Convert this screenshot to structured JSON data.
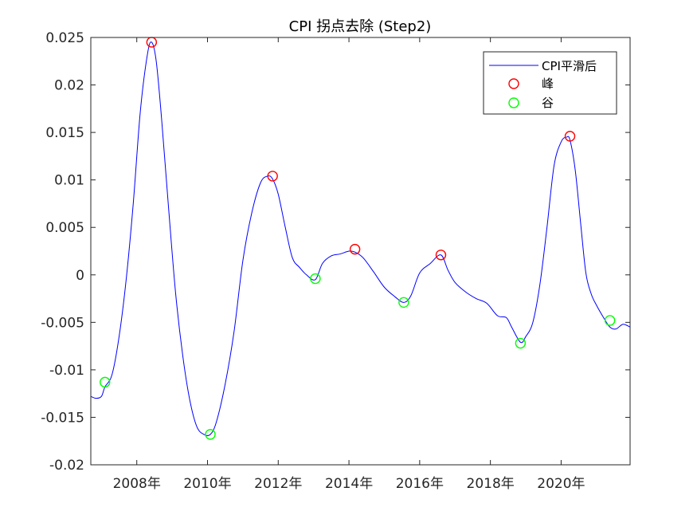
{
  "chart_data": {
    "type": "line",
    "title": "CPI 拐点去除 (Step2)",
    "xlabel": "",
    "ylabel": "",
    "xlim": [
      2006.7,
      2021.95
    ],
    "ylim": [
      -0.02,
      0.025
    ],
    "x_ticks": [
      2008,
      2010,
      2012,
      2014,
      2016,
      2018,
      2020
    ],
    "x_tick_labels": [
      "2008年",
      "2010年",
      "2012年",
      "2014年",
      "2016年",
      "2018年",
      "2020年"
    ],
    "y_ticks": [
      0.025,
      0.02,
      0.015,
      0.01,
      0.005,
      0,
      -0.005,
      -0.01,
      -0.015,
      -0.02
    ],
    "y_tick_labels": [
      "0.025",
      "0.02",
      "0.015",
      "0.01",
      "0.005",
      "0",
      "-0.005",
      "-0.01",
      "-0.015",
      "-0.02"
    ],
    "grid": false,
    "legend_position": "top-right",
    "series": [
      {
        "name": "CPI平滑后",
        "kind": "line",
        "color": "#0000ff",
        "x": [
          2006.7,
          2006.85,
          2007.0,
          2007.1,
          2007.3,
          2007.5,
          2007.7,
          2007.9,
          2008.1,
          2008.3,
          2008.42,
          2008.55,
          2008.7,
          2008.9,
          2009.1,
          2009.3,
          2009.5,
          2009.7,
          2009.9,
          2010.08,
          2010.25,
          2010.5,
          2010.75,
          2011.0,
          2011.25,
          2011.5,
          2011.7,
          2011.84,
          2012.0,
          2012.2,
          2012.4,
          2012.6,
          2012.8,
          2013.05,
          2013.25,
          2013.5,
          2013.75,
          2014.0,
          2014.17,
          2014.4,
          2014.7,
          2015.0,
          2015.3,
          2015.55,
          2015.75,
          2016.0,
          2016.3,
          2016.6,
          2016.8,
          2017.0,
          2017.3,
          2017.6,
          2017.9,
          2018.2,
          2018.45,
          2018.6,
          2018.85,
          2019.0,
          2019.2,
          2019.4,
          2019.6,
          2019.8,
          2020.0,
          2020.15,
          2020.25,
          2020.4,
          2020.55,
          2020.7,
          2020.85,
          2021.0,
          2021.2,
          2021.38,
          2021.55,
          2021.75,
          2021.95
        ],
        "y": [
          -0.0128,
          -0.013,
          -0.0128,
          -0.0118,
          -0.0105,
          -0.0065,
          -0.0005,
          0.0075,
          0.0172,
          0.0232,
          0.0245,
          0.0225,
          0.0165,
          0.007,
          -0.002,
          -0.0085,
          -0.0132,
          -0.016,
          -0.0168,
          -0.0168,
          -0.0155,
          -0.0115,
          -0.006,
          0.0015,
          0.0065,
          0.0097,
          0.0104,
          0.0101,
          0.0085,
          0.005,
          0.0018,
          0.0008,
          0.0,
          -0.0005,
          0.0012,
          0.002,
          0.0022,
          0.0025,
          0.0024,
          0.0018,
          0.0003,
          -0.0013,
          -0.0023,
          -0.0029,
          -0.0022,
          0.0002,
          0.0012,
          0.0021,
          0.0005,
          -0.0008,
          -0.0018,
          -0.0025,
          -0.003,
          -0.0043,
          -0.0045,
          -0.0055,
          -0.0071,
          -0.0065,
          -0.005,
          -0.001,
          0.005,
          0.0115,
          0.014,
          0.0145,
          0.0142,
          0.011,
          0.0055,
          0.0002,
          -0.002,
          -0.0032,
          -0.0045,
          -0.0055,
          -0.0057,
          -0.0052,
          -0.0055
        ]
      },
      {
        "name": "峰",
        "kind": "marker",
        "color": "#ff0000",
        "x": [
          2008.42,
          2011.84,
          2014.17,
          2016.6,
          2020.25
        ],
        "y": [
          0.0245,
          0.0104,
          0.0027,
          0.0021,
          0.0146
        ]
      },
      {
        "name": "谷",
        "kind": "marker",
        "color": "#00ff00",
        "x": [
          2007.1,
          2010.08,
          2013.05,
          2015.55,
          2018.85,
          2021.38
        ],
        "y": [
          -0.0113,
          -0.0168,
          -0.0004,
          -0.0029,
          -0.0072,
          -0.0048
        ]
      }
    ]
  }
}
